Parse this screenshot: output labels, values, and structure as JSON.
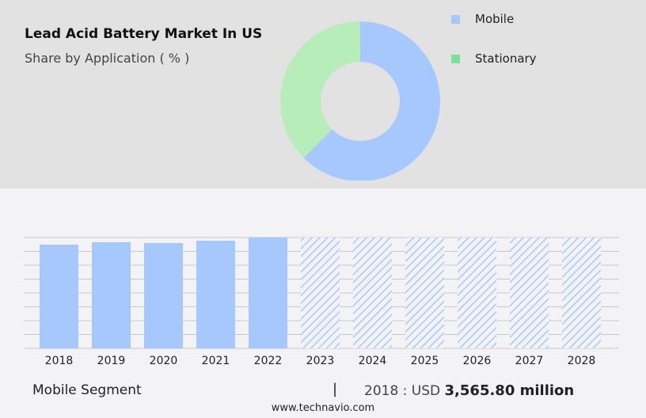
{
  "header": {
    "title": "Lead Acid Battery Market In US",
    "subtitle": "Share by Application ( % )"
  },
  "chart_data": [
    {
      "type": "pie",
      "variant": "donut",
      "categories": [
        "Mobile",
        "Stationary"
      ],
      "values": [
        62.5,
        37.5
      ],
      "colors": [
        "#a7c8fd",
        "#b7edb9"
      ],
      "legend_colors": [
        "#a7c8fd",
        "#7ae19a"
      ],
      "legend": "right"
    },
    {
      "type": "bar",
      "categories": [
        "2018",
        "2019",
        "2020",
        "2021",
        "2022",
        "2023",
        "2024",
        "2025",
        "2026",
        "2027",
        "2028"
      ],
      "values": [
        3565.8,
        3647,
        3620,
        3702,
        3811,
        null,
        null,
        null,
        null,
        null,
        null
      ],
      "forecast_from": "2023",
      "color": "#a7c8fd",
      "grid": true
    }
  ],
  "footer": {
    "segment": "Mobile Segment",
    "separator": "|",
    "year_label": "2018 : USD",
    "value": "3,565.80 million",
    "site": "www.technavio.com"
  }
}
